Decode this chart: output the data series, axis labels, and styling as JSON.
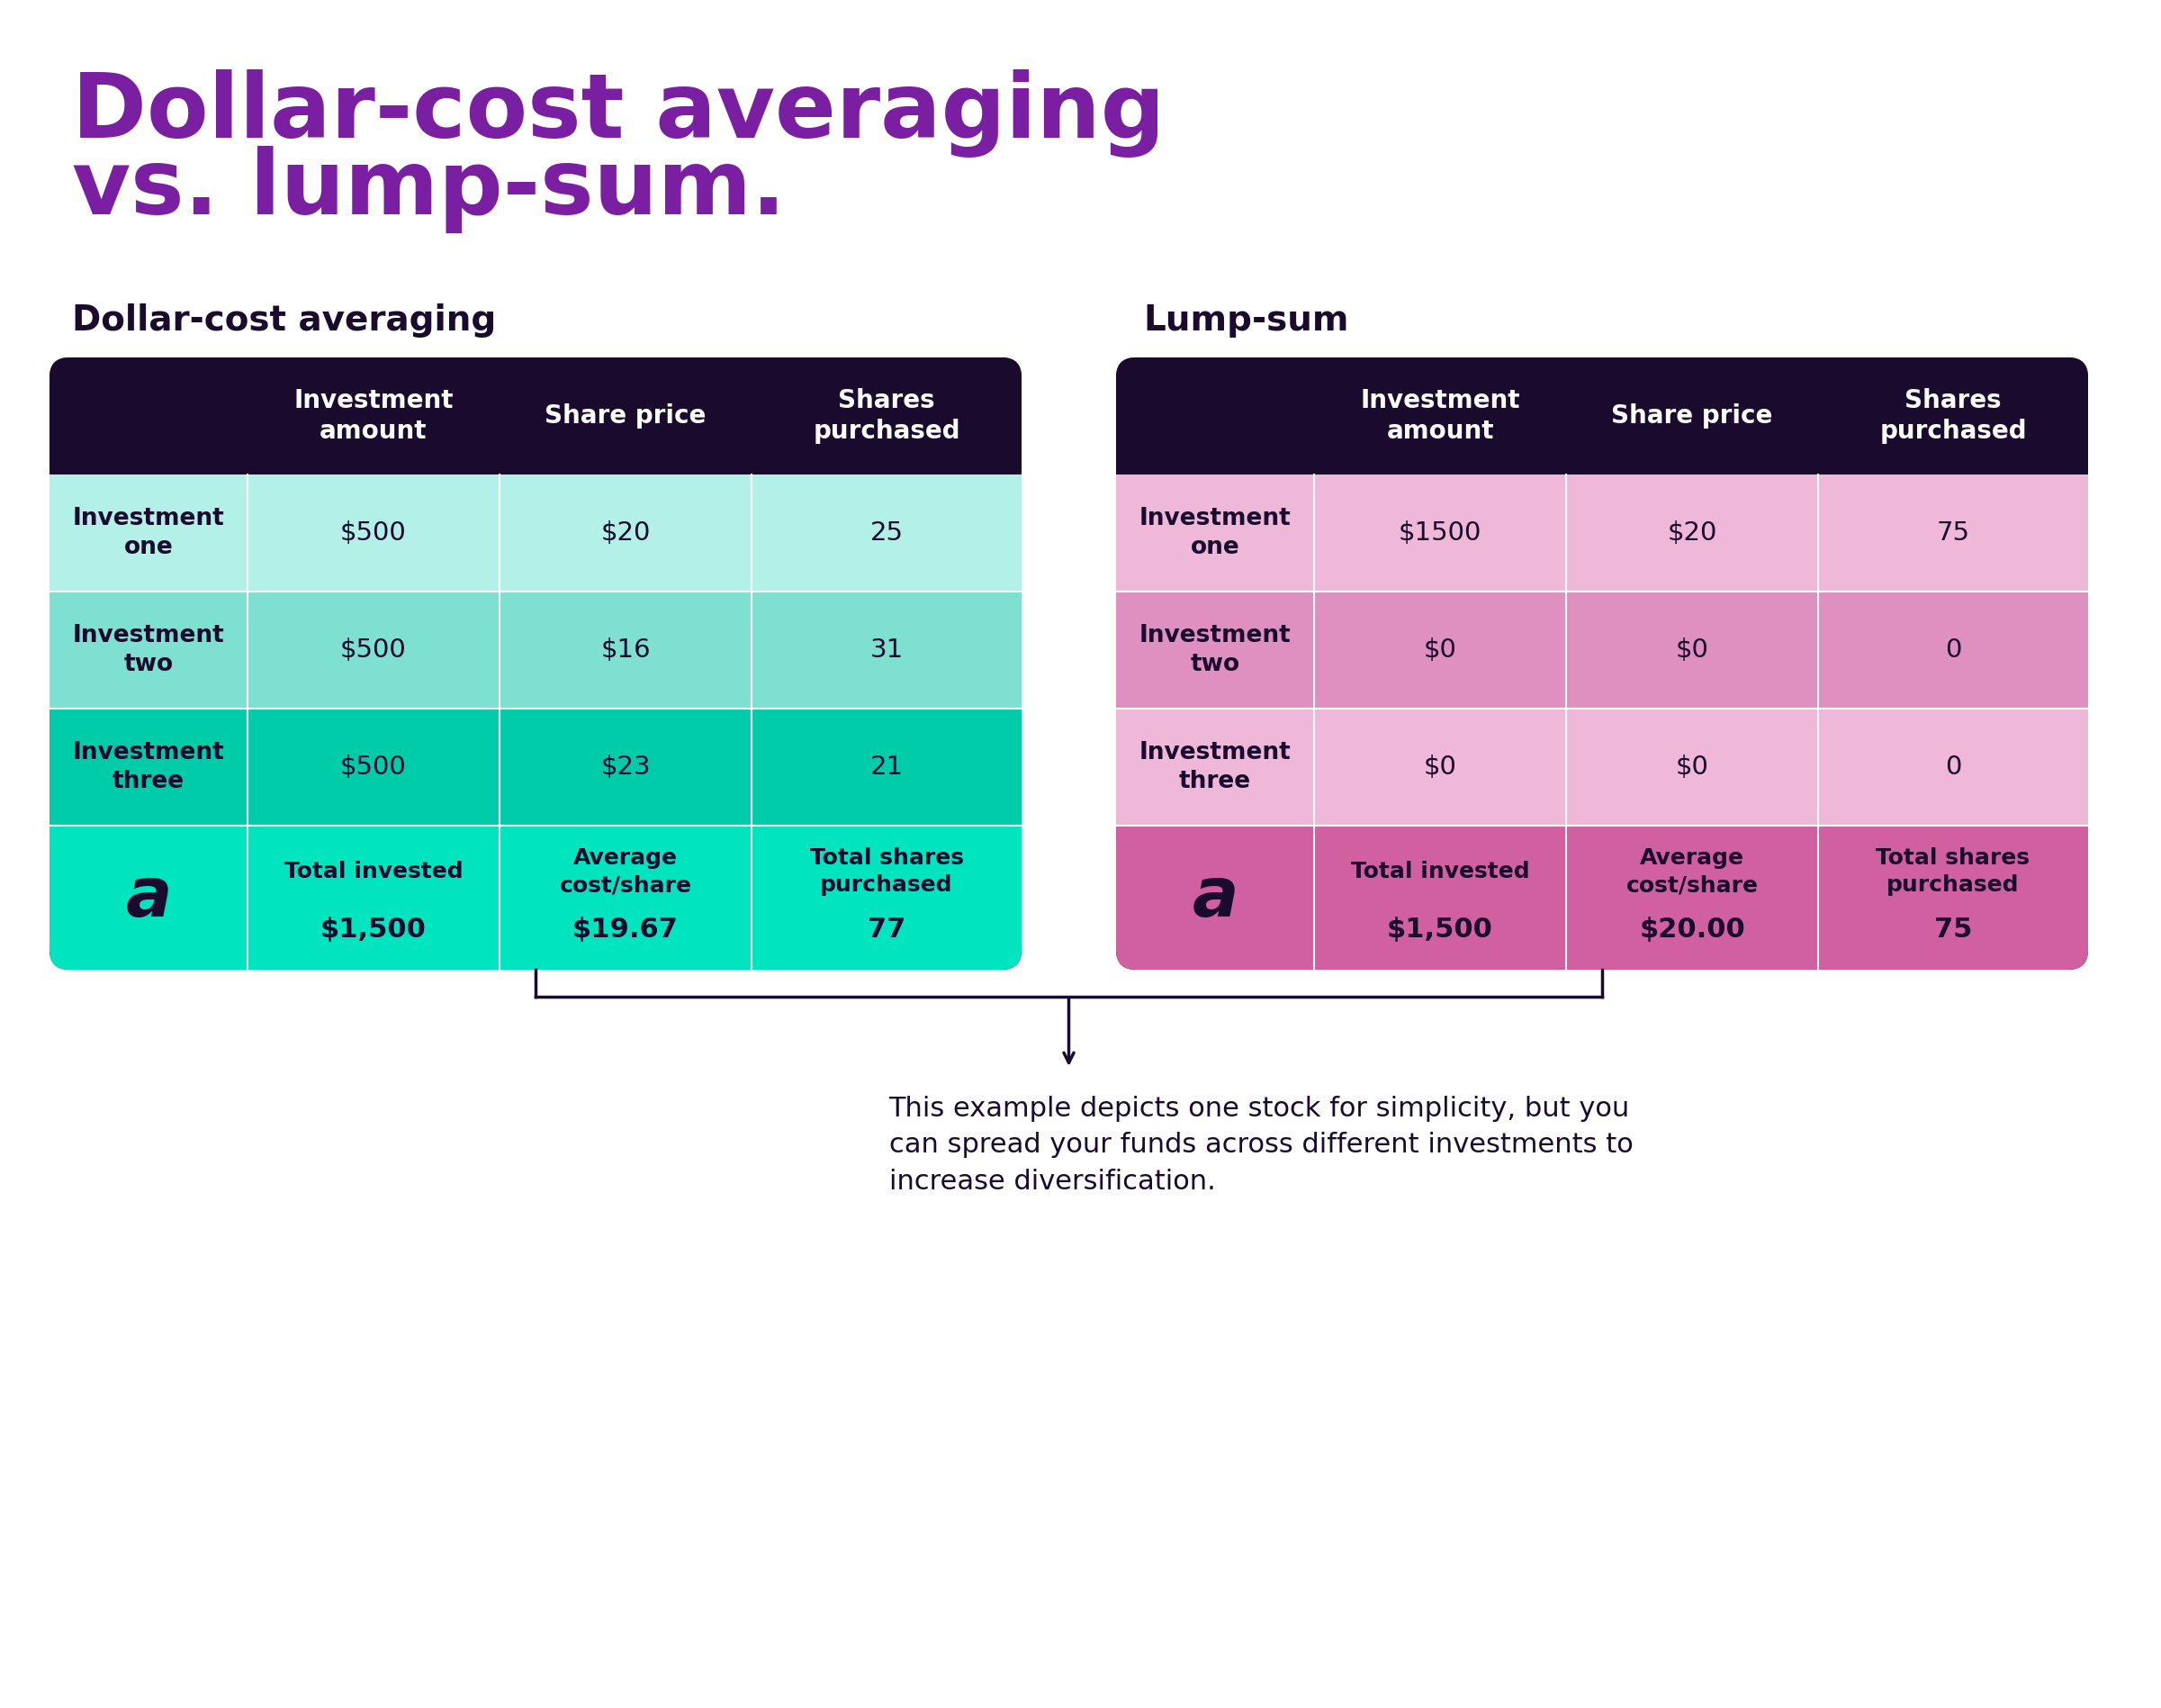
{
  "title_line1": "Dollar-cost averaging",
  "title_line2": "vs. lump-sum.",
  "title_color": "#7B1FA2",
  "title_fontsize": 72,
  "bg_color": "#FFFFFF",
  "dca_label": "Dollar-cost averaging",
  "lump_label": "Lump-sum",
  "subtitle_color": "#1a0a2e",
  "subtitle_fontsize": 28,
  "header_bg": "#1a0a2e",
  "header_text_color": "#FFFFFF",
  "header_labels": [
    "Investment\namount",
    "Share price",
    "Shares\npurchased"
  ],
  "dca_row_colors": [
    "#b2f0e8",
    "#6ee0d0",
    "#00e5c0"
  ],
  "dca_row_label_color": "#1a0a2e",
  "dca_data_color": "#1a0a2e",
  "dca_rows": [
    [
      "Investment\none",
      "$500",
      "$20",
      "25"
    ],
    [
      "Investment\ntwo",
      "$500",
      "$16",
      "31"
    ],
    [
      "Investment\nthree",
      "$500",
      "$23",
      "21"
    ]
  ],
  "dca_footer_bg": "#00e5c0",
  "dca_footer_labels": [
    "Total invested",
    "Average\ncost/share",
    "Total shares\npurchased"
  ],
  "dca_footer_values": [
    "$1,500",
    "$19.67",
    "77"
  ],
  "lump_row_colors": [
    "#f0b8d8",
    "#e8a0c8",
    "#f0b8d8"
  ],
  "lump_row_label_color": "#1a0a2e",
  "lump_data_color": "#1a0a2e",
  "lump_rows": [
    [
      "Investment\none",
      "$1500",
      "$20",
      "75"
    ],
    [
      "Investment\ntwo",
      "$0",
      "$0",
      "0"
    ],
    [
      "Investment\nthree",
      "$0",
      "$0",
      "0"
    ]
  ],
  "lump_footer_bg": "#e060a0",
  "lump_footer_labels": [
    "Total invested",
    "Average\ncost/share",
    "Total shares\npurchased"
  ],
  "lump_footer_values": [
    "$1,500",
    "$20.00",
    "75"
  ],
  "arrow_color": "#1a0a2e",
  "footnote": "This example depicts one stock for simplicity, but you\ncan spread your funds across different investments to\nincrease diversification.",
  "footnote_color": "#1a0a2e",
  "footnote_fontsize": 22,
  "logo_color": "#1a0a2e"
}
